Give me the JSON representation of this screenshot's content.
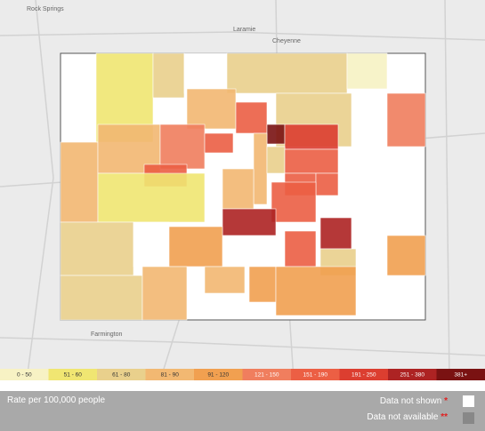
{
  "places": [
    "Rock Springs",
    "Laramie",
    "Cheyenne",
    "Farmington"
  ],
  "legend": {
    "title": "Rate per 100,000 people",
    "bins": [
      {
        "label": "0 - 50",
        "color": "#f7f2c4"
      },
      {
        "label": "51 - 60",
        "color": "#f0e672"
      },
      {
        "label": "61 - 80",
        "color": "#e9d08c"
      },
      {
        "label": "81 - 90",
        "color": "#f2b872"
      },
      {
        "label": "91 - 120",
        "color": "#f1a050"
      },
      {
        "label": "121 - 150",
        "color": "#f07e5e"
      },
      {
        "label": "151 - 190",
        "color": "#ec5f44"
      },
      {
        "label": "191 - 250",
        "color": "#dc3e30"
      },
      {
        "label": "251 - 380",
        "color": "#ad2323"
      },
      {
        "label": "381+",
        "color": "#7a1212"
      }
    ],
    "not_shown": {
      "label": "Data not shown",
      "mark": "*"
    },
    "not_available": {
      "label": "Data not available",
      "mark": "**"
    }
  }
}
